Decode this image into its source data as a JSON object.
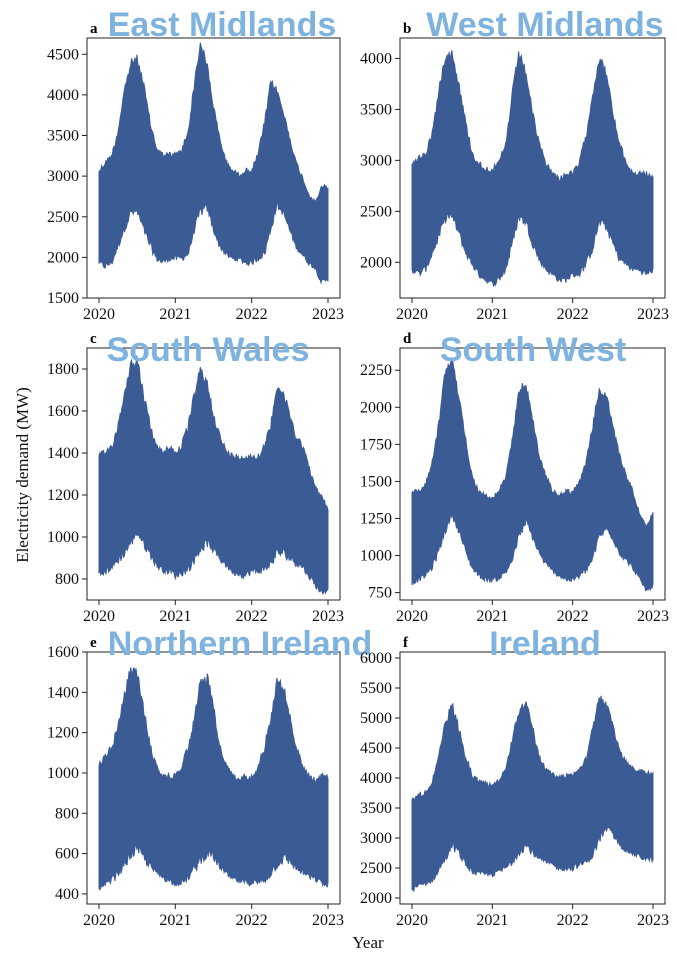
{
  "figure": {
    "ylabel": "Electricity demand (MW)",
    "xlabel": "Year",
    "series_color": "#3b5b95",
    "title_color": "#7fb3df"
  },
  "chart_data": [
    {
      "type": "area",
      "panel": "a",
      "title": "East Midlands",
      "x_ticks": [
        "2020",
        "2021",
        "2022",
        "2023"
      ],
      "y_ticks": [
        1500,
        2000,
        2500,
        3000,
        3500,
        4000,
        4500
      ],
      "ylim": [
        1500,
        4700
      ],
      "xlim": [
        2020,
        2023
      ],
      "series": [
        {
          "x": [
            2020.0,
            2020.08,
            2020.17,
            2020.25,
            2020.33,
            2020.42,
            2020.5,
            2020.58,
            2020.67,
            2020.75,
            2020.83,
            2020.92,
            2021.0,
            2021.08,
            2021.17,
            2021.25,
            2021.33,
            2021.42,
            2021.5,
            2021.58,
            2021.67,
            2021.75,
            2021.83,
            2021.92,
            2022.0,
            2022.08,
            2022.17,
            2022.25,
            2022.33,
            2022.42,
            2022.5,
            2022.58,
            2022.67,
            2022.75,
            2022.83,
            2022.92,
            2023.0
          ],
          "upper": [
            3100,
            3200,
            3300,
            3600,
            4100,
            4450,
            4500,
            4200,
            3700,
            3400,
            3300,
            3300,
            3300,
            3350,
            3600,
            4200,
            4700,
            4400,
            3900,
            3500,
            3200,
            3100,
            3050,
            3100,
            3100,
            3300,
            3700,
            4200,
            4100,
            3800,
            3500,
            3200,
            3000,
            2800,
            2700,
            2900,
            2900
          ],
          "lower": [
            1900,
            1850,
            1900,
            2100,
            2300,
            2500,
            2500,
            2300,
            2100,
            1950,
            1900,
            1950,
            1950,
            1950,
            2000,
            2300,
            2500,
            2550,
            2300,
            2100,
            2000,
            1950,
            1950,
            1900,
            1900,
            1950,
            2000,
            2300,
            2600,
            2500,
            2300,
            2100,
            2000,
            1900,
            1850,
            1650,
            1700
          ]
        }
      ]
    },
    {
      "type": "area",
      "panel": "b",
      "title": "West Midlands",
      "x_ticks": [
        "2020",
        "2021",
        "2022",
        "2023"
      ],
      "y_ticks": [
        2000,
        2500,
        3000,
        3500,
        4000
      ],
      "ylim": [
        1650,
        4200
      ],
      "xlim": [
        2020,
        2023
      ],
      "series": [
        {
          "x": [
            2020.0,
            2020.08,
            2020.17,
            2020.25,
            2020.33,
            2020.42,
            2020.5,
            2020.58,
            2020.67,
            2020.75,
            2020.83,
            2020.92,
            2021.0,
            2021.08,
            2021.17,
            2021.25,
            2021.33,
            2021.42,
            2021.5,
            2021.58,
            2021.67,
            2021.75,
            2021.83,
            2021.92,
            2022.0,
            2022.08,
            2022.17,
            2022.25,
            2022.33,
            2022.42,
            2022.5,
            2022.58,
            2022.67,
            2022.75,
            2022.83,
            2022.92,
            2023.0
          ],
          "upper": [
            3000,
            3050,
            3100,
            3300,
            3700,
            4100,
            4100,
            3800,
            3400,
            3100,
            3000,
            2950,
            2950,
            3000,
            3200,
            3700,
            4100,
            3900,
            3500,
            3200,
            3000,
            2900,
            2850,
            2900,
            2900,
            3000,
            3300,
            3700,
            4050,
            3900,
            3500,
            3200,
            3000,
            2900,
            2900,
            2900,
            2850
          ],
          "lower": [
            1900,
            1850,
            1900,
            2050,
            2200,
            2400,
            2400,
            2250,
            2050,
            1950,
            1850,
            1800,
            1750,
            1800,
            1900,
            2150,
            2400,
            2350,
            2150,
            2000,
            1900,
            1850,
            1800,
            1800,
            1850,
            1850,
            1950,
            2100,
            2350,
            2300,
            2150,
            2000,
            1950,
            1900,
            1900,
            1850,
            1900
          ]
        }
      ]
    },
    {
      "type": "area",
      "panel": "c",
      "title": "South Wales",
      "x_ticks": [
        "2020",
        "2021",
        "2022",
        "2023"
      ],
      "y_ticks": [
        800,
        1000,
        1200,
        1400,
        1600,
        1800
      ],
      "ylim": [
        700,
        1900
      ],
      "xlim": [
        2020,
        2023
      ],
      "series": [
        {
          "x": [
            2020.0,
            2020.08,
            2020.17,
            2020.25,
            2020.33,
            2020.42,
            2020.5,
            2020.58,
            2020.67,
            2020.75,
            2020.83,
            2020.92,
            2021.0,
            2021.08,
            2021.17,
            2021.25,
            2021.33,
            2021.42,
            2021.5,
            2021.58,
            2021.67,
            2021.75,
            2021.83,
            2021.92,
            2022.0,
            2022.08,
            2022.17,
            2022.25,
            2022.33,
            2022.42,
            2022.5,
            2022.58,
            2022.67,
            2022.75,
            2022.83,
            2022.92,
            2023.0
          ],
          "upper": [
            1400,
            1420,
            1450,
            1550,
            1700,
            1850,
            1870,
            1700,
            1550,
            1450,
            1420,
            1450,
            1420,
            1450,
            1550,
            1700,
            1820,
            1750,
            1600,
            1500,
            1420,
            1400,
            1400,
            1400,
            1400,
            1400,
            1450,
            1550,
            1750,
            1700,
            1600,
            1500,
            1450,
            1350,
            1250,
            1200,
            1150
          ],
          "lower": [
            800,
            820,
            840,
            870,
            900,
            950,
            1000,
            950,
            900,
            850,
            830,
            820,
            800,
            810,
            830,
            870,
            920,
            950,
            920,
            880,
            850,
            820,
            810,
            800,
            820,
            820,
            830,
            850,
            900,
            900,
            880,
            860,
            840,
            800,
            760,
            720,
            740
          ]
        }
      ]
    },
    {
      "type": "area",
      "panel": "d",
      "title": "South West",
      "x_ticks": [
        "2020",
        "2021",
        "2022",
        "2023"
      ],
      "y_ticks": [
        750,
        1000,
        1250,
        1500,
        1750,
        2000,
        2250
      ],
      "ylim": [
        700,
        2400
      ],
      "xlim": [
        2020,
        2023
      ],
      "series": [
        {
          "x": [
            2020.0,
            2020.08,
            2020.17,
            2020.25,
            2020.33,
            2020.42,
            2020.5,
            2020.58,
            2020.67,
            2020.75,
            2020.83,
            2020.92,
            2021.0,
            2021.08,
            2021.17,
            2021.25,
            2021.33,
            2021.42,
            2021.5,
            2021.58,
            2021.67,
            2021.75,
            2021.83,
            2021.92,
            2022.0,
            2022.08,
            2022.17,
            2022.25,
            2022.33,
            2022.42,
            2022.5,
            2022.58,
            2022.67,
            2022.75,
            2022.83,
            2022.92,
            2023.0
          ],
          "upper": [
            1450,
            1450,
            1500,
            1650,
            1900,
            2300,
            2350,
            2100,
            1800,
            1550,
            1450,
            1420,
            1400,
            1450,
            1550,
            1800,
            2150,
            2180,
            1950,
            1700,
            1550,
            1450,
            1420,
            1450,
            1450,
            1500,
            1650,
            1900,
            2150,
            2100,
            1900,
            1700,
            1550,
            1450,
            1300,
            1200,
            1300
          ],
          "lower": [
            800,
            820,
            850,
            900,
            1000,
            1150,
            1250,
            1150,
            1000,
            900,
            850,
            820,
            820,
            830,
            870,
            950,
            1100,
            1200,
            1100,
            1000,
            920,
            880,
            850,
            820,
            820,
            840,
            880,
            950,
            1100,
            1150,
            1100,
            1000,
            950,
            900,
            830,
            750,
            780
          ]
        }
      ]
    },
    {
      "type": "area",
      "panel": "e",
      "title": "Northern Ireland",
      "x_ticks": [
        "2020",
        "2021",
        "2022",
        "2023"
      ],
      "y_ticks": [
        400,
        600,
        800,
        1000,
        1200,
        1400,
        1600
      ],
      "ylim": [
        350,
        1600
      ],
      "xlim": [
        2020,
        2023
      ],
      "series": [
        {
          "x": [
            2020.0,
            2020.08,
            2020.17,
            2020.25,
            2020.33,
            2020.42,
            2020.5,
            2020.58,
            2020.67,
            2020.75,
            2020.83,
            2020.92,
            2021.0,
            2021.08,
            2021.17,
            2021.25,
            2021.33,
            2021.42,
            2021.5,
            2021.58,
            2021.67,
            2021.75,
            2021.83,
            2021.92,
            2022.0,
            2022.08,
            2022.17,
            2022.25,
            2022.33,
            2022.42,
            2022.5,
            2022.58,
            2022.67,
            2022.75,
            2022.83,
            2022.92,
            2023.0
          ],
          "upper": [
            1050,
            1100,
            1150,
            1250,
            1400,
            1550,
            1520,
            1350,
            1150,
            1050,
            1000,
            1000,
            1000,
            1050,
            1150,
            1300,
            1480,
            1500,
            1350,
            1150,
            1050,
            1000,
            980,
            1000,
            1000,
            1050,
            1150,
            1300,
            1480,
            1450,
            1300,
            1150,
            1050,
            1000,
            980,
            1000,
            1000
          ],
          "lower": [
            400,
            420,
            450,
            480,
            520,
            570,
            600,
            560,
            520,
            490,
            470,
            450,
            440,
            440,
            460,
            500,
            540,
            580,
            560,
            520,
            480,
            460,
            450,
            440,
            440,
            440,
            450,
            480,
            520,
            550,
            540,
            510,
            490,
            470,
            460,
            440,
            420
          ]
        }
      ]
    },
    {
      "type": "area",
      "panel": "f",
      "title": "Ireland",
      "x_ticks": [
        "2020",
        "2021",
        "2022",
        "2023"
      ],
      "y_ticks": [
        2000,
        2500,
        3000,
        3500,
        4000,
        4500,
        5000,
        5500,
        6000
      ],
      "ylim": [
        1900,
        6100
      ],
      "xlim": [
        2020,
        2023
      ],
      "series": [
        {
          "x": [
            2020.0,
            2020.08,
            2020.17,
            2020.25,
            2020.33,
            2020.42,
            2020.5,
            2020.58,
            2020.67,
            2020.75,
            2020.83,
            2020.92,
            2021.0,
            2021.08,
            2021.17,
            2021.25,
            2021.33,
            2021.42,
            2021.5,
            2021.58,
            2021.67,
            2021.75,
            2021.83,
            2021.92,
            2022.0,
            2022.08,
            2022.17,
            2022.25,
            2022.33,
            2022.42,
            2022.5,
            2022.58,
            2022.67,
            2022.75,
            2022.83,
            2022.92,
            2023.0
          ],
          "upper": [
            3700,
            3750,
            3800,
            4000,
            4400,
            5000,
            5300,
            4900,
            4400,
            4100,
            4000,
            3950,
            3950,
            4000,
            4200,
            4700,
            5200,
            5300,
            4900,
            4400,
            4200,
            4100,
            4050,
            4100,
            4100,
            4200,
            4400,
            4900,
            5400,
            5300,
            4900,
            4500,
            4300,
            4200,
            4150,
            4150,
            4100
          ],
          "lower": [
            2100,
            2150,
            2200,
            2250,
            2400,
            2600,
            2800,
            2700,
            2500,
            2400,
            2350,
            2350,
            2350,
            2400,
            2450,
            2550,
            2700,
            2800,
            2700,
            2600,
            2550,
            2500,
            2450,
            2450,
            2450,
            2500,
            2550,
            2650,
            2900,
            3100,
            3000,
            2850,
            2750,
            2700,
            2650,
            2600,
            2600
          ]
        }
      ]
    }
  ]
}
